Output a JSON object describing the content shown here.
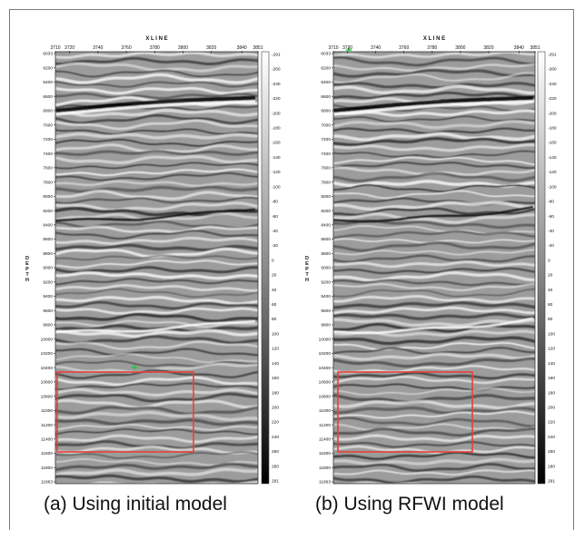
{
  "panels": [
    {
      "id": "a",
      "caption": "(a) Using initial model",
      "xline_title": "X L I N E",
      "xline_ticks": [
        "3710",
        "3720",
        "3740",
        "3760",
        "3780",
        "3800",
        "3820",
        "3840",
        "3851"
      ],
      "depth_title": "D\nE\nP\nT\nH",
      "depth_ticks": [
        "6033",
        "6200",
        "6400",
        "6600",
        "6800",
        "7000",
        "7200",
        "7400",
        "7600",
        "7800",
        "8000",
        "8200",
        "8400",
        "8600",
        "8800",
        "9000",
        "9200",
        "9400",
        "9600",
        "9800",
        "10000",
        "10200",
        "10400",
        "10600",
        "10800",
        "11000",
        "11200",
        "11400",
        "11600",
        "11800",
        "11863"
      ],
      "colorbar_ticks": [
        "-291",
        "-260",
        "-240",
        "-220",
        "-200",
        "-180",
        "-160",
        "-140",
        "-120",
        "-100",
        "-80",
        "-60",
        "-40",
        "-20",
        "0",
        "20",
        "40",
        "60",
        "80",
        "100",
        "120",
        "140",
        "160",
        "180",
        "200",
        "220",
        "240",
        "260",
        "280",
        "291"
      ]
    },
    {
      "id": "b",
      "caption": "(b) Using RFWI model",
      "xline_title": "X L I N E",
      "xline_ticks": [
        "3710",
        "3720",
        "3740",
        "3760",
        "3780",
        "3800",
        "3820",
        "3840",
        "3851"
      ],
      "depth_title": "D\nE\nP\nT\nH",
      "depth_ticks": [
        "6033",
        "6200",
        "6400",
        "6600",
        "6800",
        "7000",
        "7200",
        "7400",
        "7600",
        "7800",
        "8000",
        "8200",
        "8400",
        "8600",
        "8800",
        "9000",
        "9200",
        "9400",
        "9600",
        "9800",
        "10000",
        "10200",
        "10400",
        "10600",
        "10800",
        "11000",
        "11200",
        "11400",
        "11600",
        "11800",
        "11863"
      ],
      "colorbar_ticks": [
        "-291",
        "-260",
        "-240",
        "-220",
        "-200",
        "-180",
        "-160",
        "-140",
        "-120",
        "-100",
        "-80",
        "-60",
        "-40",
        "-20",
        "0",
        "20",
        "40",
        "60",
        "80",
        "100",
        "120",
        "140",
        "160",
        "180",
        "200",
        "220",
        "240",
        "260",
        "280",
        "291"
      ]
    }
  ],
  "colors": {
    "highlight_box": "#e8403a",
    "marker": "#2fbf4a"
  }
}
